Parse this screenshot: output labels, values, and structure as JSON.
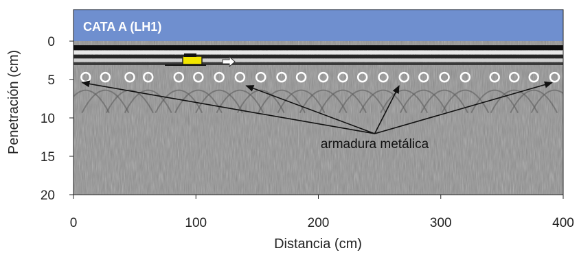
{
  "chart_data": {
    "type": "scatter",
    "title": "CATA A (LH1)",
    "xlabel": "Distancia (cm)",
    "ylabel": "Penetración (cm)",
    "xlim": [
      0,
      400
    ],
    "ylim": [
      0,
      20
    ],
    "y_axis_inverted": true,
    "x_ticks": [
      0,
      100,
      200,
      300,
      400
    ],
    "y_ticks": [
      0,
      5,
      10,
      15,
      20
    ],
    "grid": false,
    "legend": "none",
    "series": [
      {
        "name": "",
        "marker": "open-circle",
        "x": [
          10,
          26,
          46,
          61,
          86,
          102,
          119,
          136,
          153,
          170,
          186,
          204,
          220,
          236,
          253,
          270,
          286,
          303,
          320,
          344,
          360,
          376,
          393
        ],
        "y": [
          4.7,
          4.7,
          4.7,
          4.7,
          4.7,
          4.7,
          4.7,
          4.7,
          4.7,
          4.7,
          4.7,
          4.7,
          4.7,
          4.7,
          4.7,
          4.7,
          4.7,
          4.7,
          4.7,
          4.7,
          4.7,
          4.7,
          4.7
        ]
      }
    ],
    "annotations": [
      {
        "text": "armadura metálica",
        "x": 246,
        "y": 13.3,
        "arrows_to": [
          {
            "x": 7,
            "y": 5.4
          },
          {
            "x": 141,
            "y": 5.8
          },
          {
            "x": 266,
            "y": 5.8
          },
          {
            "x": 391,
            "y": 5.4
          }
        ]
      }
    ]
  },
  "colors": {
    "title_band": "#6f8fcf",
    "title_text": "#ffffff",
    "radargram_background": "#909090",
    "markers": "#ffffff",
    "arrows": "#111111"
  }
}
